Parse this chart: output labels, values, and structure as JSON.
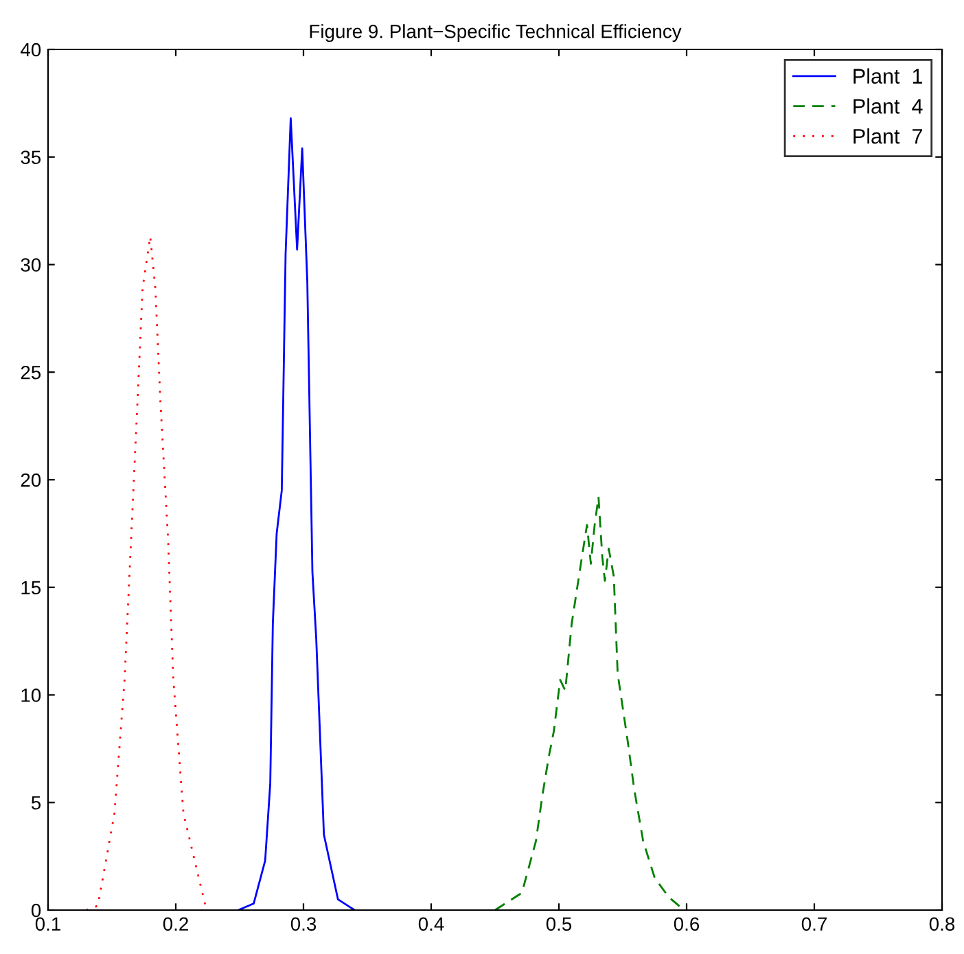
{
  "chart_data": {
    "type": "line",
    "title": "Figure 9. Plant−Specific Technical Efficiency",
    "xlim": [
      0.1,
      0.8
    ],
    "ylim": [
      0,
      40
    ],
    "xticks": [
      0.1,
      0.2,
      0.3,
      0.4,
      0.5,
      0.6,
      0.7,
      0.8
    ],
    "yticks": [
      0,
      5,
      10,
      15,
      20,
      25,
      30,
      35,
      40
    ],
    "grid": false,
    "legend": "top right",
    "series": [
      {
        "name": "Plant  1",
        "color": "#0000ff",
        "line_style": "solid",
        "x": [
          0.249,
          0.261,
          0.27,
          0.274,
          0.276,
          0.279,
          0.283,
          0.286,
          0.29,
          0.295,
          0.299,
          0.303,
          0.307,
          0.31,
          0.316,
          0.327,
          0.34
        ],
        "values": [
          0,
          0.3,
          2.3,
          5.9,
          13.3,
          17.5,
          19.5,
          30.5,
          36.8,
          30.7,
          35.4,
          29.2,
          15.7,
          12.6,
          3.5,
          0.5,
          0
        ]
      },
      {
        "name": "Plant  4",
        "color": "#008000",
        "line_style": "dashed",
        "x": [
          0.45,
          0.471,
          0.482,
          0.487,
          0.492,
          0.496,
          0.501,
          0.505,
          0.51,
          0.518,
          0.522,
          0.525,
          0.528,
          0.531,
          0.534,
          0.536,
          0.539,
          0.543,
          0.546,
          0.554,
          0.559,
          0.566,
          0.575,
          0.586,
          0.598
        ],
        "values": [
          0,
          0.8,
          3.2,
          5.3,
          7.1,
          8.3,
          10.7,
          10.2,
          13.3,
          16.4,
          17.9,
          16.1,
          17.9,
          19.2,
          16.4,
          15.3,
          16.8,
          15.5,
          11.0,
          7.8,
          5.6,
          3.2,
          1.5,
          0.6,
          0
        ]
      },
      {
        "name": "Plant  7",
        "color": "#ff0000",
        "line_style": "dotted",
        "x": [
          0.13,
          0.139,
          0.152,
          0.16,
          0.165,
          0.17,
          0.174,
          0.18,
          0.184,
          0.188,
          0.194,
          0.198,
          0.206,
          0.224
        ],
        "values": [
          0,
          0.2,
          4.5,
          10.8,
          17.2,
          23.6,
          28.9,
          31.3,
          28.9,
          23.6,
          17.2,
          10.8,
          4.5,
          0
        ]
      }
    ]
  }
}
